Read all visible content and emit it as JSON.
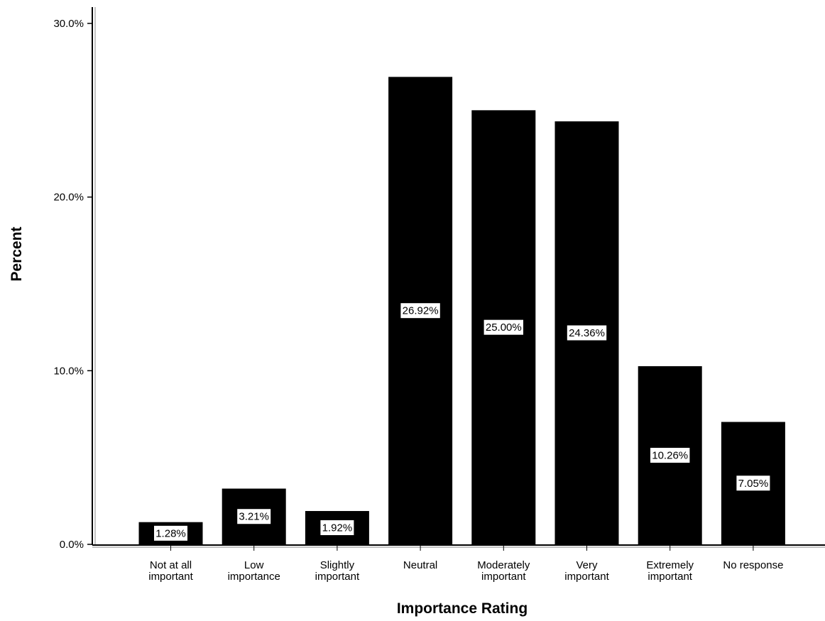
{
  "chart_data": {
    "type": "bar",
    "title": "",
    "xlabel": "Importance Rating",
    "ylabel": "Percent",
    "categories": [
      [
        "Not at all",
        "important"
      ],
      [
        "Low",
        "importance"
      ],
      [
        "Slightly",
        "important"
      ],
      [
        "Neutral"
      ],
      [
        "Moderately",
        "important"
      ],
      [
        "Very",
        "important"
      ],
      [
        "Extremely",
        "important"
      ],
      [
        "No response"
      ]
    ],
    "values": [
      1.28,
      3.21,
      1.92,
      26.92,
      25.0,
      24.36,
      10.26,
      7.05
    ],
    "data_labels": [
      "1.28%",
      "3.21%",
      "1.92%",
      "26.92%",
      "25.00%",
      "24.36%",
      "10.26%",
      "7.05%"
    ],
    "ylim": [
      0,
      30
    ],
    "y_ticks": [
      {
        "value": 0,
        "label": "0.0%"
      },
      {
        "value": 10,
        "label": "10.0%"
      },
      {
        "value": 20,
        "label": "20.0%"
      },
      {
        "value": 30,
        "label": "30.0%"
      }
    ],
    "bar_color": "#000000",
    "grid": false,
    "legend": "none"
  }
}
